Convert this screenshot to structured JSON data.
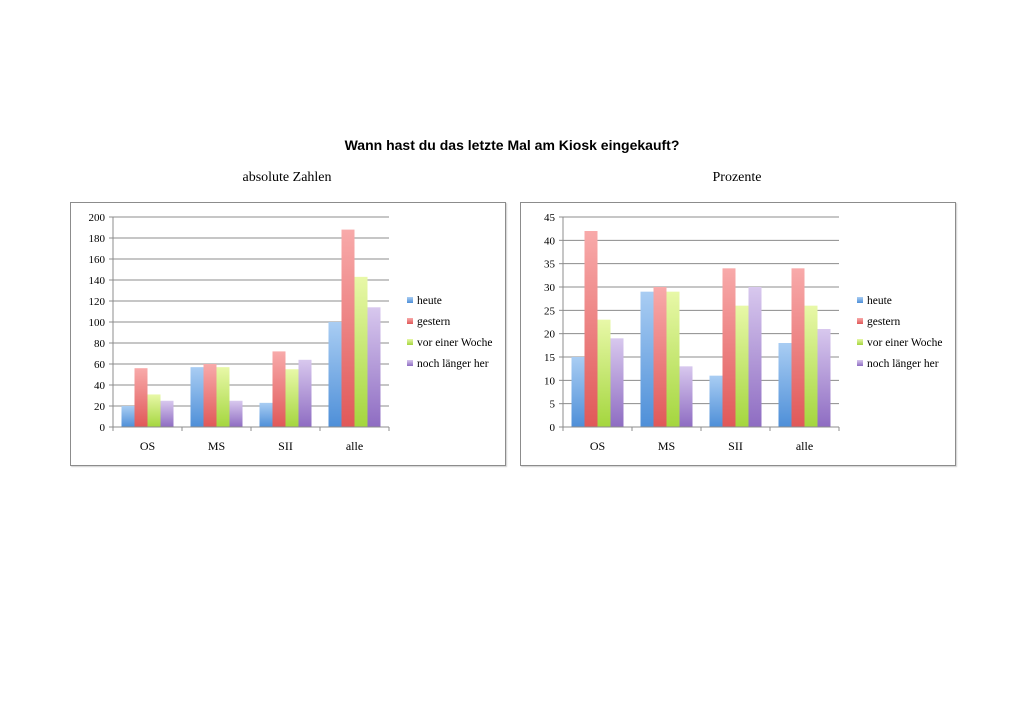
{
  "title": "Wann hast du das letzte Mal am Kiosk eingekauft?",
  "colors": {
    "heute": [
      "#a9cdf3",
      "#4e8fd8"
    ],
    "gestern": [
      "#f8aaaa",
      "#e05858"
    ],
    "vor_einer_woche": [
      "#e8f8a8",
      "#a4d63e"
    ],
    "noch_laenger_her": [
      "#d8c8ee",
      "#8e6cc2"
    ],
    "grid": "#8c8c8c",
    "border": "#8c8c8c"
  },
  "chart_data": [
    {
      "type": "bar",
      "title": "absolute Zahlen",
      "categories": [
        "OS",
        "MS",
        "SII",
        "alle"
      ],
      "ylim": [
        0,
        200
      ],
      "yticks": [
        0,
        20,
        40,
        60,
        80,
        100,
        120,
        140,
        160,
        180,
        200
      ],
      "grid": true,
      "legend_position": "right",
      "series": [
        {
          "name": "heute",
          "values": [
            20,
            57,
            23,
            100
          ]
        },
        {
          "name": "gestern",
          "values": [
            56,
            60,
            72,
            188
          ]
        },
        {
          "name": "vor einer Woche",
          "values": [
            31,
            57,
            55,
            143
          ]
        },
        {
          "name": "noch länger her",
          "values": [
            25,
            25,
            64,
            114
          ]
        }
      ]
    },
    {
      "type": "bar",
      "title": "Prozente",
      "categories": [
        "OS",
        "MS",
        "SII",
        "alle"
      ],
      "ylim": [
        0,
        45
      ],
      "yticks": [
        0,
        5,
        10,
        15,
        20,
        25,
        30,
        35,
        40,
        45
      ],
      "grid": true,
      "legend_position": "right",
      "series": [
        {
          "name": "heute",
          "values": [
            15,
            29,
            11,
            18
          ]
        },
        {
          "name": "gestern",
          "values": [
            42,
            30,
            34,
            34
          ]
        },
        {
          "name": "vor einer Woche",
          "values": [
            23,
            29,
            26,
            26
          ]
        },
        {
          "name": "noch länger her",
          "values": [
            19,
            13,
            30,
            21
          ]
        }
      ]
    }
  ]
}
